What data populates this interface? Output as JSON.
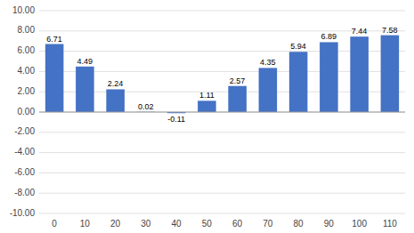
{
  "chart_data": {
    "type": "bar",
    "categories": [
      "0",
      "10",
      "20",
      "30",
      "40",
      "50",
      "60",
      "70",
      "80",
      "90",
      "100",
      "110"
    ],
    "values": [
      6.71,
      4.49,
      2.24,
      0.02,
      -0.11,
      1.11,
      2.57,
      4.35,
      5.94,
      6.89,
      7.44,
      7.58
    ],
    "color": "#4472c4",
    "ylim": [
      -10,
      10
    ],
    "yticks": [
      {
        "value": -10.0,
        "label": "-10.00"
      },
      {
        "value": -8.0,
        "label": "-8.00"
      },
      {
        "value": -6.0,
        "label": "-6.00"
      },
      {
        "value": -4.0,
        "label": "-4.00"
      },
      {
        "value": -2.0,
        "label": "-2.00"
      },
      {
        "value": 0.0,
        "label": "0.00"
      },
      {
        "value": 2.0,
        "label": "2.00"
      },
      {
        "value": 4.0,
        "label": "4.00"
      },
      {
        "value": 6.0,
        "label": "6.00"
      },
      {
        "value": 8.0,
        "label": "8.00"
      },
      {
        "value": 10.0,
        "label": "10.00"
      }
    ],
    "grid": true,
    "data_labels": true
  }
}
